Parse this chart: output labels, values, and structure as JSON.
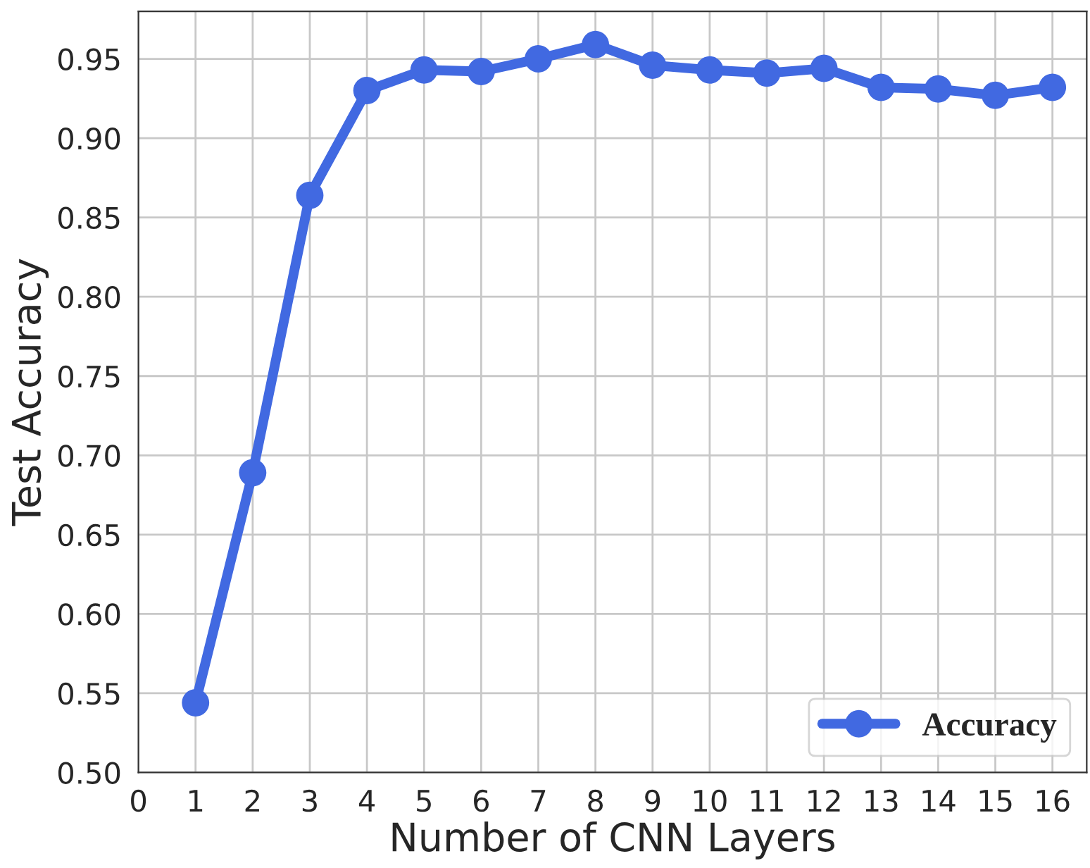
{
  "chart_data": {
    "type": "line",
    "xlabel": "Number of CNN Layers",
    "ylabel": "Test Accuracy",
    "x": [
      1,
      2,
      3,
      4,
      5,
      6,
      7,
      8,
      9,
      10,
      11,
      12,
      13,
      14,
      15,
      16
    ],
    "series": [
      {
        "name": "Accuracy",
        "color": "#4169e1",
        "values": [
          0.544,
          0.689,
          0.864,
          0.93,
          0.943,
          0.942,
          0.95,
          0.959,
          0.946,
          0.943,
          0.941,
          0.944,
          0.932,
          0.931,
          0.927,
          0.932
        ]
      }
    ],
    "xlim": [
      0,
      16.6
    ],
    "xticks": [
      0,
      1,
      2,
      3,
      4,
      5,
      6,
      7,
      8,
      9,
      10,
      11,
      12,
      13,
      14,
      15,
      16
    ],
    "ylim": [
      0.5,
      0.98
    ],
    "yticks": [
      {
        "value": 0.5,
        "label": "0.50"
      },
      {
        "value": 0.55,
        "label": "0.55"
      },
      {
        "value": 0.6,
        "label": "0.60"
      },
      {
        "value": 0.65,
        "label": "0.65"
      },
      {
        "value": 0.7,
        "label": "0.70"
      },
      {
        "value": 0.75,
        "label": "0.75"
      },
      {
        "value": 0.8,
        "label": "0.80"
      },
      {
        "value": 0.85,
        "label": "0.85"
      },
      {
        "value": 0.9,
        "label": "0.90"
      },
      {
        "value": 0.95,
        "label": "0.95"
      }
    ],
    "grid": true,
    "legend": "bottom right",
    "marker": "circle",
    "line_style": "solid"
  }
}
